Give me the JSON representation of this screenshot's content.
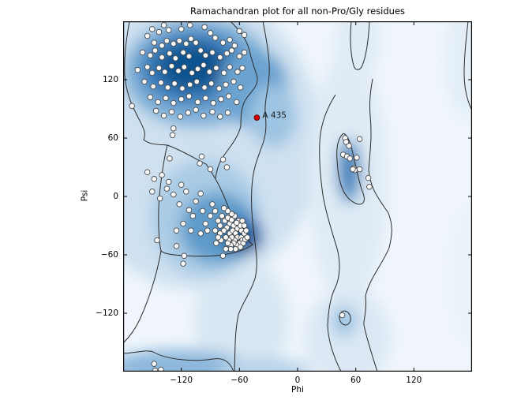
{
  "title": "Ramachandran plot for all non-Pro/Gly residues",
  "axes": {
    "xlabel": "Phi",
    "ylabel": "Psi",
    "xlim": [
      -180,
      180
    ],
    "ylim": [
      -180,
      180
    ],
    "x_ticks": [
      -120,
      -60,
      0,
      60,
      120
    ],
    "y_ticks": [
      120,
      60,
      0,
      -60,
      -120
    ],
    "x_tick_labels": [
      "−120",
      "−60",
      "0",
      "60",
      "120"
    ],
    "y_tick_labels": [
      "120",
      "60",
      "0",
      "−60",
      "−120"
    ]
  },
  "annotations": [
    {
      "text": "A 435",
      "phi": -42,
      "psi": 81
    }
  ],
  "colors": {
    "background": "#ffffff",
    "plot_bg": "#f0f6fb",
    "contour": "#2b2b2b",
    "axis": "#000000",
    "point_fill": "#fbfbfb",
    "point_stroke": "#4a4a4a",
    "outlier_fill": "#d40000",
    "outlier_stroke": "#5a0000",
    "density_dark": "#11538f",
    "density_mid": "#3b7fbc",
    "density_light": "#c6dcef"
  },
  "chart_data": {
    "type": "scatter",
    "title": "Ramachandran plot for all non-Pro/Gly residues",
    "xlabel": "Phi",
    "ylabel": "Psi",
    "xlim": [
      -180,
      180
    ],
    "ylim": [
      -180,
      180
    ],
    "grid": false,
    "legend": "none",
    "background": "Blues density shading of favored/allowed Ramachandran regions with black contour outlines",
    "series": [
      {
        "name": "residues",
        "marker": "circle",
        "points": [
          [
            -150,
            172
          ],
          [
            -143,
            169
          ],
          [
            -155,
            165
          ],
          [
            -133,
            171
          ],
          [
            -120,
            172
          ],
          [
            -111,
            176
          ],
          [
            -96,
            174
          ],
          [
            -90,
            168
          ],
          [
            -85,
            163
          ],
          [
            -60,
            170
          ],
          [
            -55,
            166
          ],
          [
            -138,
            176
          ],
          [
            -148,
            158
          ],
          [
            -140,
            155
          ],
          [
            -135,
            160
          ],
          [
            -128,
            157
          ],
          [
            -122,
            160
          ],
          [
            -115,
            157
          ],
          [
            -110,
            162
          ],
          [
            -105,
            158
          ],
          [
            -77,
            158
          ],
          [
            -70,
            161
          ],
          [
            -65,
            155
          ],
          [
            -160,
            148
          ],
          [
            -152,
            145
          ],
          [
            -147,
            150
          ],
          [
            -140,
            143
          ],
          [
            -132,
            147
          ],
          [
            -126,
            142
          ],
          [
            -118,
            148
          ],
          [
            -112,
            144
          ],
          [
            -100,
            150
          ],
          [
            -95,
            145
          ],
          [
            -88,
            148
          ],
          [
            -80,
            143
          ],
          [
            -73,
            147
          ],
          [
            -68,
            150
          ],
          [
            -60,
            144
          ],
          [
            -55,
            148
          ],
          [
            -165,
            130
          ],
          [
            -155,
            133
          ],
          [
            -150,
            127
          ],
          [
            -143,
            132
          ],
          [
            -137,
            128
          ],
          [
            -130,
            134
          ],
          [
            -123,
            129
          ],
          [
            -117,
            133
          ],
          [
            -109,
            127
          ],
          [
            -103,
            131
          ],
          [
            -97,
            135
          ],
          [
            -91,
            128
          ],
          [
            -84,
            132
          ],
          [
            -76,
            127
          ],
          [
            -70,
            133
          ],
          [
            -62,
            128
          ],
          [
            -57,
            132
          ],
          [
            -158,
            118
          ],
          [
            -149,
            113
          ],
          [
            -141,
            117
          ],
          [
            -134,
            112
          ],
          [
            -127,
            116
          ],
          [
            -119,
            111
          ],
          [
            -111,
            115
          ],
          [
            -104,
            118
          ],
          [
            -96,
            112
          ],
          [
            -89,
            116
          ],
          [
            -81,
            111
          ],
          [
            -74,
            115
          ],
          [
            -66,
            118
          ],
          [
            -59,
            112
          ],
          [
            -152,
            102
          ],
          [
            -144,
            97
          ],
          [
            -136,
            101
          ],
          [
            -128,
            96
          ],
          [
            -120,
            100
          ],
          [
            -112,
            103
          ],
          [
            -103,
            97
          ],
          [
            -95,
            101
          ],
          [
            -87,
            96
          ],
          [
            -79,
            100
          ],
          [
            -71,
            103
          ],
          [
            -63,
            97
          ],
          [
            -146,
            88
          ],
          [
            -138,
            83
          ],
          [
            -130,
            87
          ],
          [
            -121,
            82
          ],
          [
            -113,
            86
          ],
          [
            -105,
            89
          ],
          [
            -97,
            83
          ],
          [
            -88,
            87
          ],
          [
            -80,
            82
          ],
          [
            -72,
            86
          ],
          [
            -171,
            93
          ],
          [
            -128,
            70
          ],
          [
            -129,
            63
          ],
          [
            -99,
            41
          ],
          [
            -132,
            39
          ],
          [
            -77,
            38
          ],
          [
            -155,
            25
          ],
          [
            -148,
            18
          ],
          [
            -140,
            22
          ],
          [
            -133,
            15
          ],
          [
            -150,
            5
          ],
          [
            -142,
            -2
          ],
          [
            -135,
            8
          ],
          [
            -128,
            2
          ],
          [
            -120,
            12
          ],
          [
            -115,
            5
          ],
          [
            -122,
            -8
          ],
          [
            -112,
            -14
          ],
          [
            -105,
            -5
          ],
          [
            -100,
            3
          ],
          [
            -108,
            -20
          ],
          [
            -98,
            -15
          ],
          [
            -95,
            -28
          ],
          [
            -88,
            -8
          ],
          [
            -90,
            -20
          ],
          [
            -85,
            -15
          ],
          [
            -82,
            -25
          ],
          [
            -118,
            -28
          ],
          [
            -125,
            -35
          ],
          [
            -110,
            -35
          ],
          [
            -100,
            -38
          ],
          [
            -93,
            -35
          ],
          [
            -85,
            -35
          ],
          [
            -78,
            -20
          ],
          [
            -75,
            -25
          ],
          [
            -72,
            -22
          ],
          [
            -70,
            -28
          ],
          [
            -68,
            -24
          ],
          [
            -66,
            -30
          ],
          [
            -73,
            -32
          ],
          [
            -76,
            -35
          ],
          [
            -70,
            -38
          ],
          [
            -67,
            -35
          ],
          [
            -64,
            -38
          ],
          [
            -62,
            -33
          ],
          [
            -60,
            -28
          ],
          [
            -58,
            -35
          ],
          [
            -62,
            -42
          ],
          [
            -65,
            -45
          ],
          [
            -68,
            -42
          ],
          [
            -71,
            -45
          ],
          [
            -74,
            -42
          ],
          [
            -58,
            -42
          ],
          [
            -55,
            -38
          ],
          [
            -57,
            -45
          ],
          [
            -60,
            -48
          ],
          [
            -63,
            -50
          ],
          [
            -66,
            -48
          ],
          [
            -69,
            -50
          ],
          [
            -72,
            -48
          ],
          [
            -56,
            -48
          ],
          [
            -54,
            -44
          ],
          [
            -59,
            -52
          ],
          [
            -64,
            -54
          ],
          [
            -69,
            -54
          ],
          [
            -74,
            -54
          ],
          [
            -79,
            -45
          ],
          [
            -80,
            -38
          ],
          [
            -82,
            -42
          ],
          [
            -84,
            -48
          ],
          [
            -61,
            -25
          ],
          [
            -59,
            -30
          ],
          [
            -63,
            -27
          ],
          [
            -55,
            -30
          ],
          [
            -53,
            -35
          ],
          [
            -52,
            -42
          ],
          [
            -57,
            -25
          ],
          [
            -65,
            -20
          ],
          [
            -68,
            -18
          ],
          [
            -72,
            -15
          ],
          [
            -76,
            -12
          ],
          [
            -80,
            -30
          ],
          [
            -125,
            -51
          ],
          [
            -117,
            -61
          ],
          [
            -118,
            -69
          ],
          [
            -77,
            -61
          ],
          [
            -145,
            -45
          ],
          [
            -101,
            34
          ],
          [
            -73,
            30
          ],
          [
            -90,
            28
          ],
          [
            49,
            60
          ],
          [
            50,
            56
          ],
          [
            64,
            59
          ],
          [
            53,
            52
          ],
          [
            47,
            43
          ],
          [
            51,
            41
          ],
          [
            54,
            39
          ],
          [
            61,
            40
          ],
          [
            58,
            29
          ],
          [
            59,
            27
          ],
          [
            64,
            28
          ],
          [
            57,
            28
          ],
          [
            73,
            19
          ],
          [
            74,
            10
          ],
          [
            46,
            -122
          ],
          [
            -148,
            -172
          ],
          [
            -147,
            -179
          ],
          [
            -141,
            -178
          ]
        ]
      },
      {
        "name": "outlier-residues",
        "marker": "circle",
        "color": "#d40000",
        "points": [
          [
            -42,
            81
          ]
        ],
        "labels": [
          "A 435"
        ]
      }
    ]
  }
}
